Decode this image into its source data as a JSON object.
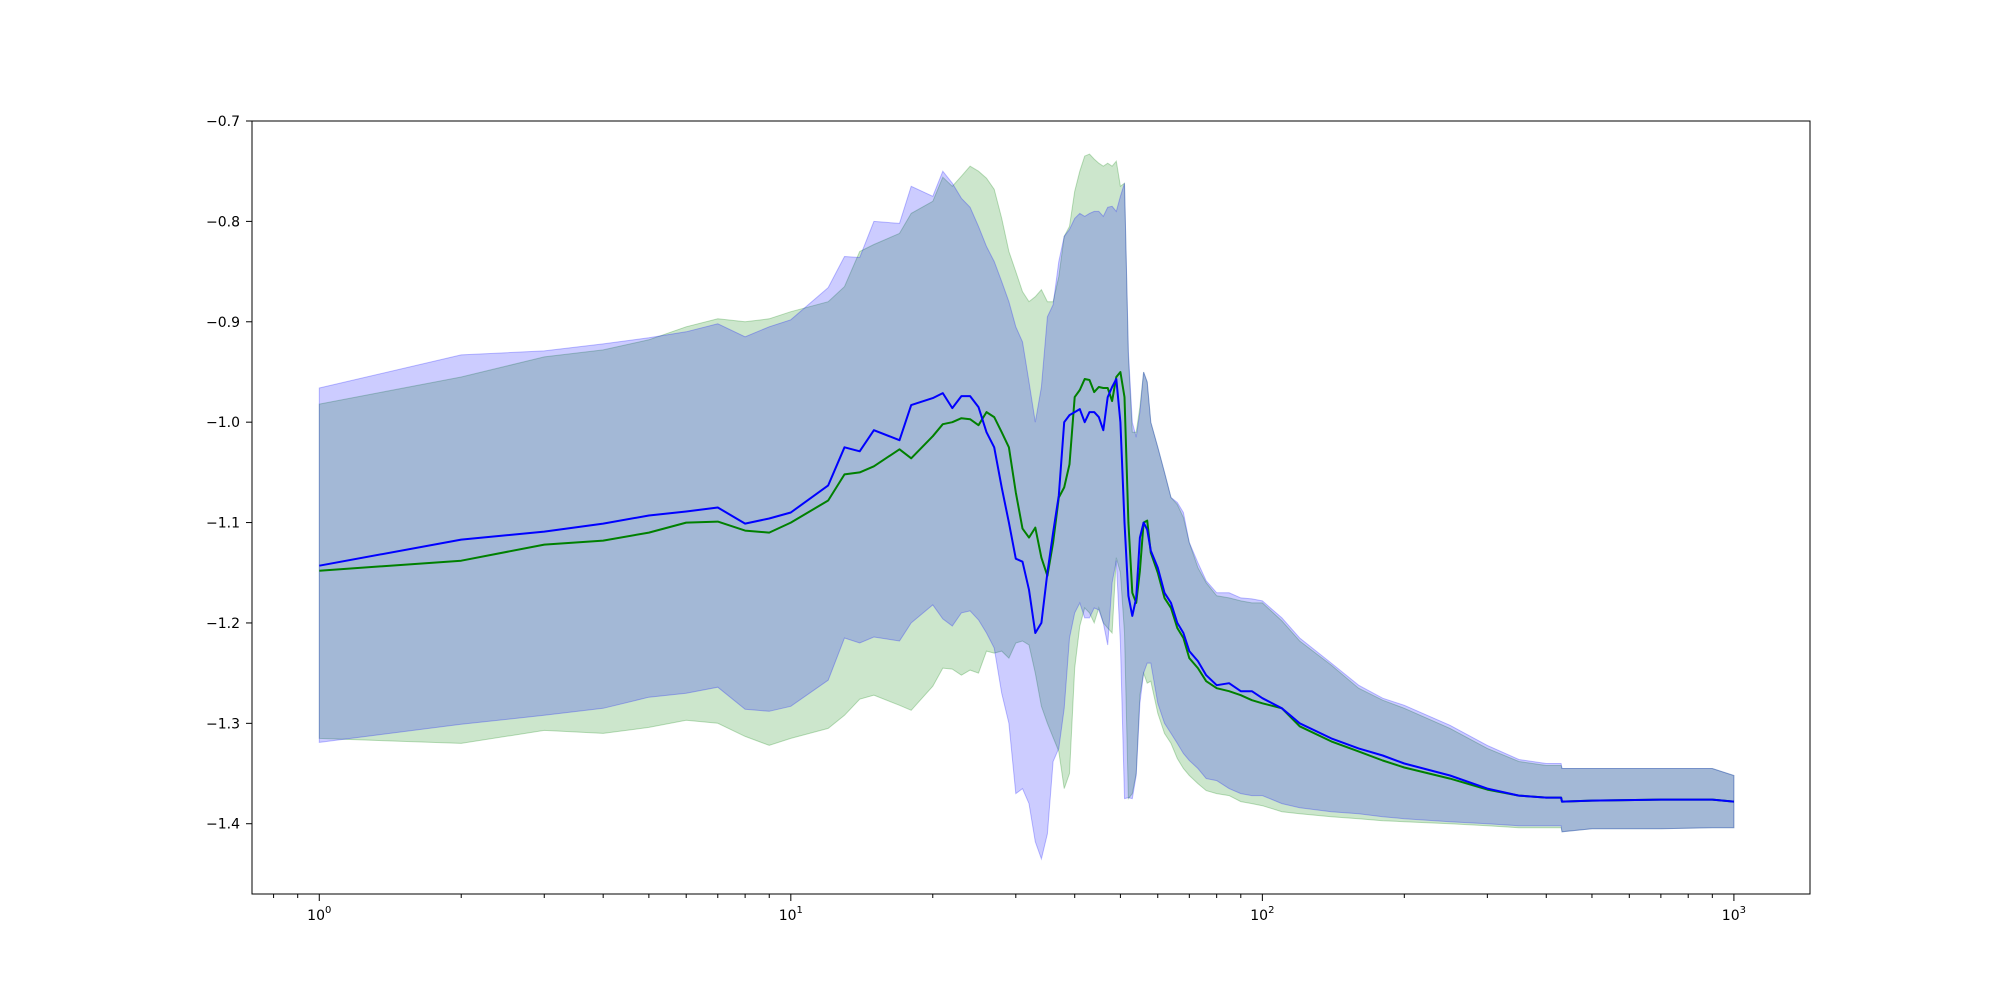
{
  "chart_data": {
    "type": "line",
    "xscale": "log",
    "xlim": [
      0.72,
      1450
    ],
    "ylim": [
      -1.47,
      -0.7
    ],
    "grid": false,
    "colors": {
      "blue_line": "#0000ff",
      "green_line": "#008000",
      "blue_band": "#0000ff",
      "green_band": "#008000"
    },
    "y_ticks": [
      {
        "value": -0.7,
        "label": "−0.7"
      },
      {
        "value": -0.8,
        "label": "−0.8"
      },
      {
        "value": -0.9,
        "label": "−0.9"
      },
      {
        "value": -1.0,
        "label": "−1.0"
      },
      {
        "value": -1.1,
        "label": "−1.1"
      },
      {
        "value": -1.2,
        "label": "−1.2"
      },
      {
        "value": -1.3,
        "label": "−1.3"
      },
      {
        "value": -1.4,
        "label": "−1.4"
      }
    ],
    "x_ticks": [
      {
        "value": 1,
        "base": "10",
        "exp": "0"
      },
      {
        "value": 10,
        "base": "10",
        "exp": "1"
      },
      {
        "value": 100,
        "base": "10",
        "exp": "2"
      },
      {
        "value": 1000,
        "base": "10",
        "exp": "3"
      }
    ],
    "x": [
      1,
      2,
      3,
      4,
      5,
      6,
      7,
      8,
      9,
      10,
      12,
      13,
      14,
      15,
      17,
      18,
      20,
      21,
      22,
      23,
      24,
      25,
      26,
      27,
      28,
      29,
      30,
      31,
      32,
      33,
      34,
      35,
      36,
      37,
      38,
      39,
      40,
      41,
      42,
      43,
      44,
      45,
      46,
      47,
      48,
      49,
      50,
      51,
      52,
      53,
      54,
      55,
      56,
      57,
      58,
      60,
      62,
      64,
      66,
      68,
      70,
      73,
      76,
      80,
      85,
      90,
      95,
      100,
      110,
      120,
      140,
      160,
      180,
      200,
      250,
      300,
      350,
      400,
      430,
      432,
      500,
      700,
      900,
      1000
    ],
    "series": [
      {
        "key": "blue",
        "mean": [
          -1.143,
          -1.117,
          -1.109,
          -1.101,
          -1.093,
          -1.089,
          -1.085,
          -1.101,
          -1.096,
          -1.09,
          -1.063,
          -1.025,
          -1.029,
          -1.008,
          -1.018,
          -0.983,
          -0.976,
          -0.971,
          -0.986,
          -0.974,
          -0.974,
          -0.985,
          -1.01,
          -1.025,
          -1.065,
          -1.1,
          -1.136,
          -1.139,
          -1.167,
          -1.21,
          -1.2,
          -1.15,
          -1.11,
          -1.073,
          -1.0,
          -0.993,
          -0.99,
          -0.987,
          -1.0,
          -0.99,
          -0.99,
          -0.995,
          -1.008,
          -0.975,
          -0.965,
          -0.957,
          -1.0,
          -1.1,
          -1.173,
          -1.193,
          -1.175,
          -1.115,
          -1.1,
          -1.107,
          -1.128,
          -1.145,
          -1.17,
          -1.18,
          -1.2,
          -1.21,
          -1.228,
          -1.238,
          -1.252,
          -1.262,
          -1.26,
          -1.268,
          -1.268,
          -1.275,
          -1.285,
          -1.3,
          -1.315,
          -1.325,
          -1.332,
          -1.34,
          -1.352,
          -1.365,
          -1.372,
          -1.374,
          -1.374,
          -1.378,
          -1.377,
          -1.376,
          -1.376,
          -1.378
        ],
        "upper": [
          -0.966,
          -0.933,
          -0.929,
          -0.922,
          -0.916,
          -0.91,
          -0.902,
          -0.915,
          -0.905,
          -0.898,
          -0.866,
          -0.835,
          -0.836,
          -0.8,
          -0.802,
          -0.765,
          -0.775,
          -0.75,
          -0.762,
          -0.777,
          -0.786,
          -0.805,
          -0.825,
          -0.84,
          -0.86,
          -0.88,
          -0.905,
          -0.92,
          -0.96,
          -1.0,
          -0.965,
          -0.895,
          -0.883,
          -0.84,
          -0.815,
          -0.808,
          -0.797,
          -0.792,
          -0.795,
          -0.792,
          -0.79,
          -0.79,
          -0.795,
          -0.786,
          -0.785,
          -0.79,
          -0.775,
          -0.762,
          -0.93,
          -1.0,
          -1.015,
          -0.99,
          -0.95,
          -0.96,
          -1.0,
          -1.025,
          -1.05,
          -1.075,
          -1.08,
          -1.09,
          -1.12,
          -1.14,
          -1.158,
          -1.17,
          -1.17,
          -1.175,
          -1.176,
          -1.178,
          -1.195,
          -1.215,
          -1.24,
          -1.262,
          -1.275,
          -1.282,
          -1.302,
          -1.322,
          -1.336,
          -1.34,
          -1.34,
          -1.345,
          -1.345,
          -1.345,
          -1.345,
          -1.352
        ],
        "lower": [
          -1.319,
          -1.301,
          -1.292,
          -1.285,
          -1.274,
          -1.27,
          -1.264,
          -1.286,
          -1.288,
          -1.283,
          -1.257,
          -1.215,
          -1.22,
          -1.214,
          -1.218,
          -1.2,
          -1.182,
          -1.196,
          -1.203,
          -1.19,
          -1.188,
          -1.197,
          -1.21,
          -1.225,
          -1.27,
          -1.3,
          -1.37,
          -1.365,
          -1.38,
          -1.418,
          -1.435,
          -1.41,
          -1.338,
          -1.325,
          -1.285,
          -1.215,
          -1.19,
          -1.18,
          -1.195,
          -1.195,
          -1.185,
          -1.187,
          -1.2,
          -1.222,
          -1.16,
          -1.138,
          -1.22,
          -1.375,
          -1.374,
          -1.375,
          -1.352,
          -1.28,
          -1.25,
          -1.24,
          -1.24,
          -1.28,
          -1.3,
          -1.31,
          -1.32,
          -1.33,
          -1.337,
          -1.345,
          -1.355,
          -1.357,
          -1.365,
          -1.37,
          -1.372,
          -1.372,
          -1.38,
          -1.384,
          -1.388,
          -1.39,
          -1.393,
          -1.395,
          -1.398,
          -1.4,
          -1.402,
          -1.402,
          -1.402,
          -1.408,
          -1.405,
          -1.405,
          -1.404,
          -1.404
        ]
      },
      {
        "key": "green",
        "mean": [
          -1.148,
          -1.138,
          -1.122,
          -1.118,
          -1.11,
          -1.1,
          -1.099,
          -1.108,
          -1.11,
          -1.1,
          -1.078,
          -1.052,
          -1.05,
          -1.044,
          -1.027,
          -1.036,
          -1.014,
          -1.002,
          -1.0,
          -0.996,
          -0.997,
          -1.003,
          -0.99,
          -0.995,
          -1.01,
          -1.025,
          -1.07,
          -1.106,
          -1.115,
          -1.105,
          -1.135,
          -1.153,
          -1.12,
          -1.075,
          -1.065,
          -1.042,
          -0.975,
          -0.968,
          -0.957,
          -0.958,
          -0.97,
          -0.965,
          -0.966,
          -0.966,
          -0.979,
          -0.955,
          -0.95,
          -0.975,
          -1.1,
          -1.17,
          -1.18,
          -1.148,
          -1.1,
          -1.098,
          -1.13,
          -1.15,
          -1.175,
          -1.185,
          -1.205,
          -1.215,
          -1.235,
          -1.245,
          -1.258,
          -1.265,
          -1.268,
          -1.272,
          -1.277,
          -1.28,
          -1.285,
          -1.303,
          -1.318,
          -1.328,
          -1.337,
          -1.344,
          -1.355,
          -1.366,
          -1.372,
          -1.374,
          -1.374,
          -1.378,
          -1.377,
          -1.376,
          -1.376,
          -1.378
        ],
        "upper": [
          -0.982,
          -0.955,
          -0.935,
          -0.928,
          -0.918,
          -0.905,
          -0.897,
          -0.9,
          -0.897,
          -0.89,
          -0.88,
          -0.865,
          -0.83,
          -0.823,
          -0.812,
          -0.792,
          -0.78,
          -0.756,
          -0.765,
          -0.755,
          -0.745,
          -0.75,
          -0.757,
          -0.768,
          -0.797,
          -0.83,
          -0.85,
          -0.87,
          -0.88,
          -0.875,
          -0.868,
          -0.88,
          -0.88,
          -0.855,
          -0.815,
          -0.805,
          -0.77,
          -0.75,
          -0.735,
          -0.733,
          -0.738,
          -0.742,
          -0.745,
          -0.742,
          -0.745,
          -0.74,
          -0.765,
          -0.762,
          -0.935,
          -1.01,
          -1.01,
          -0.985,
          -0.95,
          -0.96,
          -1.0,
          -1.025,
          -1.05,
          -1.075,
          -1.082,
          -1.095,
          -1.12,
          -1.145,
          -1.16,
          -1.173,
          -1.175,
          -1.178,
          -1.18,
          -1.18,
          -1.198,
          -1.218,
          -1.242,
          -1.265,
          -1.277,
          -1.285,
          -1.305,
          -1.325,
          -1.338,
          -1.342,
          -1.342,
          -1.345,
          -1.345,
          -1.345,
          -1.345,
          -1.352
        ],
        "lower": [
          -1.315,
          -1.32,
          -1.307,
          -1.31,
          -1.304,
          -1.297,
          -1.3,
          -1.313,
          -1.322,
          -1.315,
          -1.305,
          -1.292,
          -1.276,
          -1.272,
          -1.282,
          -1.287,
          -1.263,
          -1.245,
          -1.246,
          -1.252,
          -1.247,
          -1.25,
          -1.228,
          -1.23,
          -1.228,
          -1.235,
          -1.22,
          -1.218,
          -1.222,
          -1.25,
          -1.283,
          -1.3,
          -1.314,
          -1.328,
          -1.365,
          -1.35,
          -1.245,
          -1.203,
          -1.185,
          -1.19,
          -1.2,
          -1.185,
          -1.2,
          -1.205,
          -1.21,
          -1.135,
          -1.15,
          -1.21,
          -1.375,
          -1.37,
          -1.35,
          -1.272,
          -1.25,
          -1.26,
          -1.258,
          -1.29,
          -1.31,
          -1.32,
          -1.335,
          -1.345,
          -1.352,
          -1.36,
          -1.367,
          -1.37,
          -1.372,
          -1.378,
          -1.38,
          -1.382,
          -1.388,
          -1.39,
          -1.393,
          -1.395,
          -1.397,
          -1.398,
          -1.4,
          -1.402,
          -1.404,
          -1.404,
          -1.404,
          -1.408,
          -1.405,
          -1.405,
          -1.404,
          -1.404
        ]
      }
    ]
  }
}
